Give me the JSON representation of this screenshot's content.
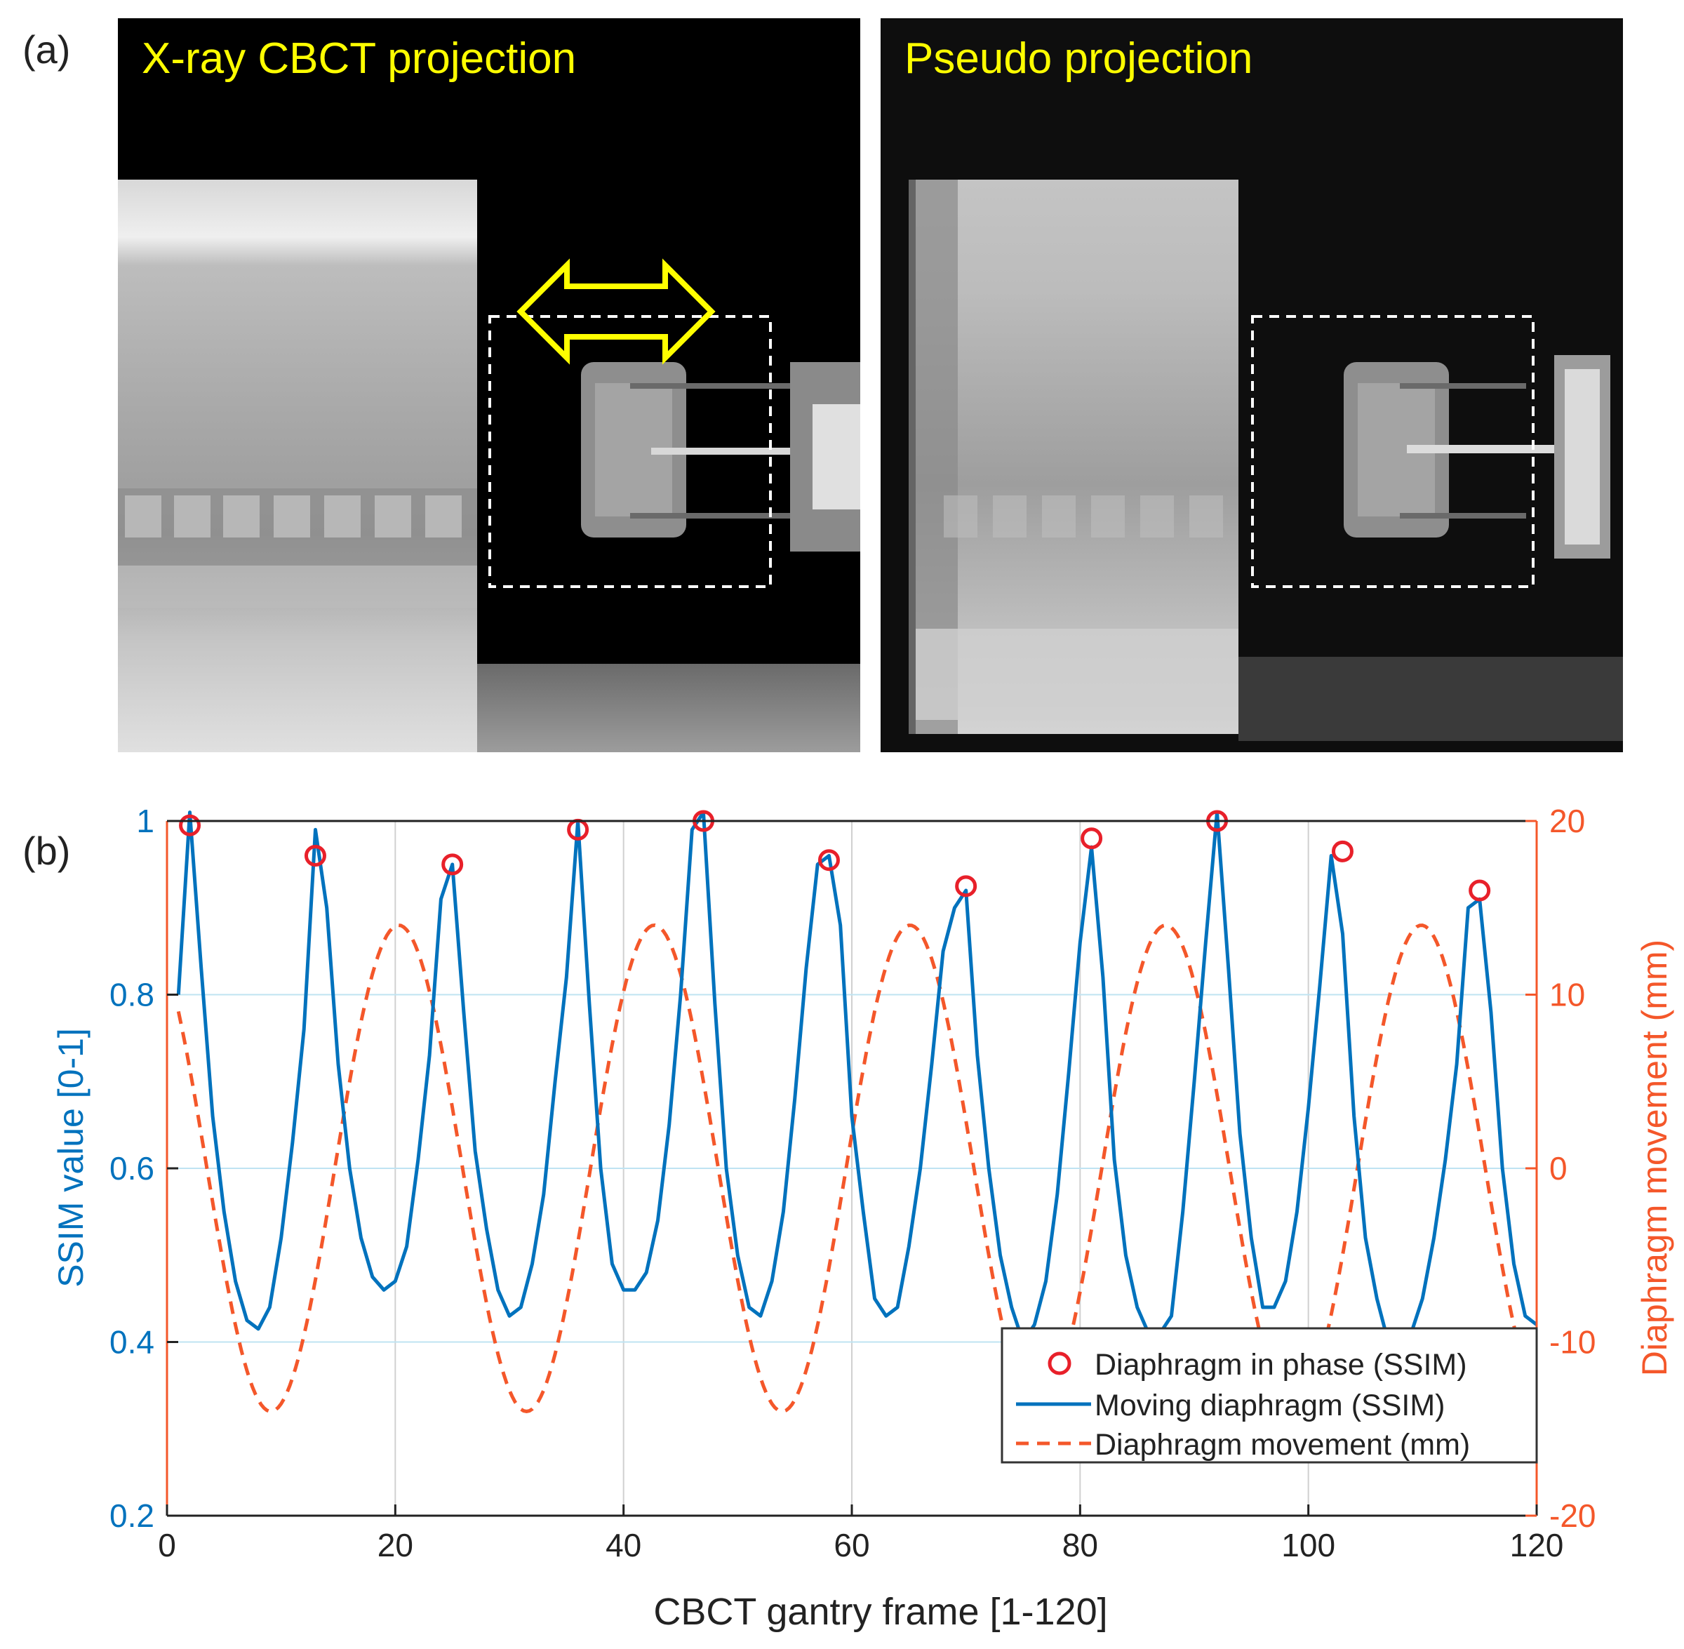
{
  "panel_a": {
    "label": "(a)",
    "left_title": "X-ray CBCT projection",
    "right_title": "Pseudo projection"
  },
  "panel_b": {
    "label": "(b)"
  },
  "colors": {
    "ssim": "#0072BD",
    "movement": "#F4572A",
    "marker": "#E8202A",
    "right_axis": "#F4572A",
    "xray_title": "#FFFF00"
  },
  "chart_data": {
    "type": "line",
    "xlabel": "CBCT gantry frame [1-120]",
    "ylabel_left": "SSIM value [0-1]",
    "ylabel_right": "Diaphragm movement (mm)",
    "xlim": [
      0,
      120
    ],
    "ylim_left": [
      0.2,
      1.0
    ],
    "ylim_right": [
      -20,
      20
    ],
    "x_ticks": [
      "0",
      "20",
      "40",
      "60",
      "80",
      "100",
      "120"
    ],
    "y_ticks_left": [
      "0.2",
      "0.4",
      "0.6",
      "0.8",
      "1"
    ],
    "y_ticks_right": [
      "-20",
      "-10",
      "0",
      "10",
      "20"
    ],
    "grid": true,
    "legend_position": "bottom-right",
    "legend": [
      "Diaphragm in phase (SSIM)",
      "Moving diaphragm (SSIM)",
      "Diaphragm movement (mm)"
    ],
    "series": [
      {
        "name": "Moving diaphragm (SSIM)",
        "axis": "left",
        "style": "solid",
        "x": [
          1,
          2,
          3,
          4,
          5,
          6,
          7,
          8,
          9,
          10,
          11,
          12,
          13,
          14,
          15,
          16,
          17,
          18,
          19,
          20,
          21,
          22,
          23,
          24,
          25,
          26,
          27,
          28,
          29,
          30,
          31,
          32,
          33,
          34,
          35,
          36,
          37,
          38,
          39,
          40,
          41,
          42,
          43,
          44,
          45,
          46,
          47,
          48,
          49,
          50,
          51,
          52,
          53,
          54,
          55,
          56,
          57,
          58,
          59,
          60,
          61,
          62,
          63,
          64,
          65,
          66,
          67,
          68,
          69,
          70,
          71,
          72,
          73,
          74,
          75,
          76,
          77,
          78,
          79,
          80,
          81,
          82,
          83,
          84,
          85,
          86,
          87,
          88,
          89,
          90,
          91,
          92,
          93,
          94,
          95,
          96,
          97,
          98,
          99,
          100,
          101,
          102,
          103,
          104,
          105,
          106,
          107,
          108,
          109,
          110,
          111,
          112,
          113,
          114,
          115,
          116,
          117,
          118,
          119,
          120
        ],
        "y": [
          0.8,
          1.01,
          0.83,
          0.66,
          0.55,
          0.47,
          0.425,
          0.415,
          0.44,
          0.52,
          0.63,
          0.76,
          0.99,
          0.9,
          0.72,
          0.6,
          0.52,
          0.475,
          0.46,
          0.47,
          0.51,
          0.61,
          0.73,
          0.91,
          0.95,
          0.78,
          0.62,
          0.53,
          0.46,
          0.43,
          0.44,
          0.49,
          0.57,
          0.7,
          0.82,
          1.0,
          0.79,
          0.6,
          0.49,
          0.46,
          0.46,
          0.48,
          0.54,
          0.65,
          0.8,
          0.99,
          1.01,
          0.79,
          0.6,
          0.5,
          0.44,
          0.43,
          0.47,
          0.55,
          0.68,
          0.83,
          0.95,
          0.96,
          0.88,
          0.66,
          0.55,
          0.45,
          0.43,
          0.44,
          0.51,
          0.6,
          0.72,
          0.85,
          0.9,
          0.92,
          0.73,
          0.6,
          0.5,
          0.44,
          0.4,
          0.42,
          0.47,
          0.57,
          0.71,
          0.86,
          0.97,
          0.82,
          0.61,
          0.5,
          0.44,
          0.41,
          0.41,
          0.43,
          0.55,
          0.7,
          0.86,
          1.01,
          0.83,
          0.64,
          0.52,
          0.44,
          0.44,
          0.47,
          0.55,
          0.67,
          0.81,
          0.96,
          0.87,
          0.66,
          0.52,
          0.45,
          0.4,
          0.395,
          0.41,
          0.45,
          0.52,
          0.61,
          0.72,
          0.9,
          0.91,
          0.78,
          0.6,
          0.49,
          0.43,
          0.42
        ]
      },
      {
        "name": "Diaphragm in phase (SSIM)",
        "axis": "left",
        "style": "marker",
        "x": [
          2,
          13,
          25,
          36,
          47,
          58,
          70,
          81,
          92,
          103,
          115
        ],
        "y": [
          0.995,
          0.96,
          0.95,
          0.99,
          1.0,
          0.955,
          0.925,
          0.98,
          1.0,
          0.965,
          0.92
        ]
      },
      {
        "name": "Diaphragm movement (mm)",
        "axis": "right",
        "style": "dashed",
        "sinusoid": {
          "amplitude_mm": 14,
          "period_frames": 22.4,
          "peak_frame": 20.3
        },
        "y_min": -14,
        "y_max": 14
      }
    ]
  }
}
